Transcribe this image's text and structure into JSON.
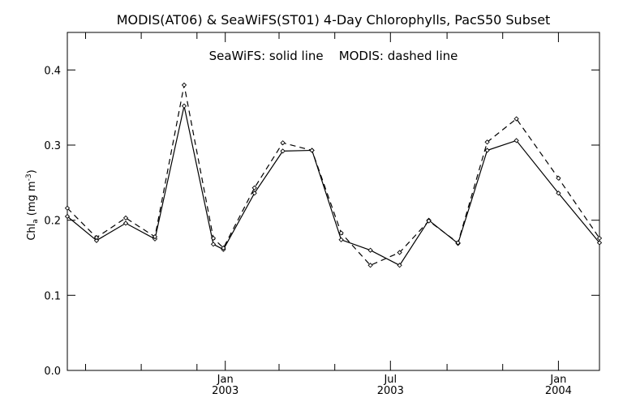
{
  "chart_data": {
    "type": "line",
    "title": "MODIS(AT06) & SeaWiFS(ST01) 4-Day Chlorophylls, PacS50 Subset",
    "subtitle": "SeaWiFS: solid line    MODIS: dashed line",
    "ylabel": "Chl",
    "ylabel_subscript": "a",
    "ylabel_units_open": "(mg m",
    "ylabel_units_sup": "-3",
    "ylabel_units_close": ")",
    "xlim": [
      "2002-07-12",
      "2004-02-15"
    ],
    "ylim": [
      0.0,
      0.45
    ],
    "yticks": [
      0.0,
      0.1,
      0.2,
      0.3,
      0.4
    ],
    "ytick_labels": [
      "0.0",
      "0.1",
      "0.2",
      "0.3",
      "0.4"
    ],
    "xticks_major": [
      {
        "date": "2003-01-01",
        "month": "Jan",
        "year": "2003"
      },
      {
        "date": "2003-07-01",
        "month": "Jul",
        "year": "2003"
      },
      {
        "date": "2004-01-01",
        "month": "Jan",
        "year": "2004"
      }
    ],
    "xticks_minor": [
      "2002-08-01",
      "2002-10-01",
      "2002-12-01",
      "2003-03-01",
      "2003-05-01",
      "2003-09-01",
      "2003-11-01"
    ],
    "grid": false,
    "series": [
      {
        "name": "SeaWiFS",
        "style": "solid",
        "x": [
          "2002-07-12",
          "2002-08-13",
          "2002-09-14",
          "2002-10-16",
          "2002-11-17",
          "2002-12-19",
          "2002-12-30",
          "2003-02-02",
          "2003-03-05",
          "2003-04-06",
          "2003-05-08",
          "2003-06-09",
          "2003-07-11",
          "2003-08-12",
          "2003-09-13",
          "2003-10-15",
          "2003-11-16",
          "2004-01-01",
          "2004-02-15"
        ],
        "y": [
          0.205,
          0.173,
          0.196,
          0.175,
          0.352,
          0.168,
          0.161,
          0.236,
          0.292,
          0.293,
          0.174,
          0.16,
          0.14,
          0.2,
          0.169,
          0.293,
          0.306,
          0.236,
          0.17
        ]
      },
      {
        "name": "MODIS",
        "style": "dashed",
        "x": [
          "2002-07-12",
          "2002-08-13",
          "2002-09-14",
          "2002-10-16",
          "2002-11-17",
          "2002-12-19",
          "2002-12-30",
          "2003-02-02",
          "2003-03-05",
          "2003-04-06",
          "2003-05-08",
          "2003-06-09",
          "2003-07-11",
          "2003-08-12",
          "2003-09-13",
          "2003-10-15",
          "2003-11-16",
          "2004-01-01",
          "2004-02-15"
        ],
        "y": [
          0.216,
          0.177,
          0.203,
          0.178,
          0.38,
          0.176,
          0.163,
          0.243,
          0.303,
          0.293,
          0.183,
          0.14,
          0.157,
          0.199,
          0.17,
          0.304,
          0.335,
          0.256,
          0.176
        ]
      }
    ]
  }
}
